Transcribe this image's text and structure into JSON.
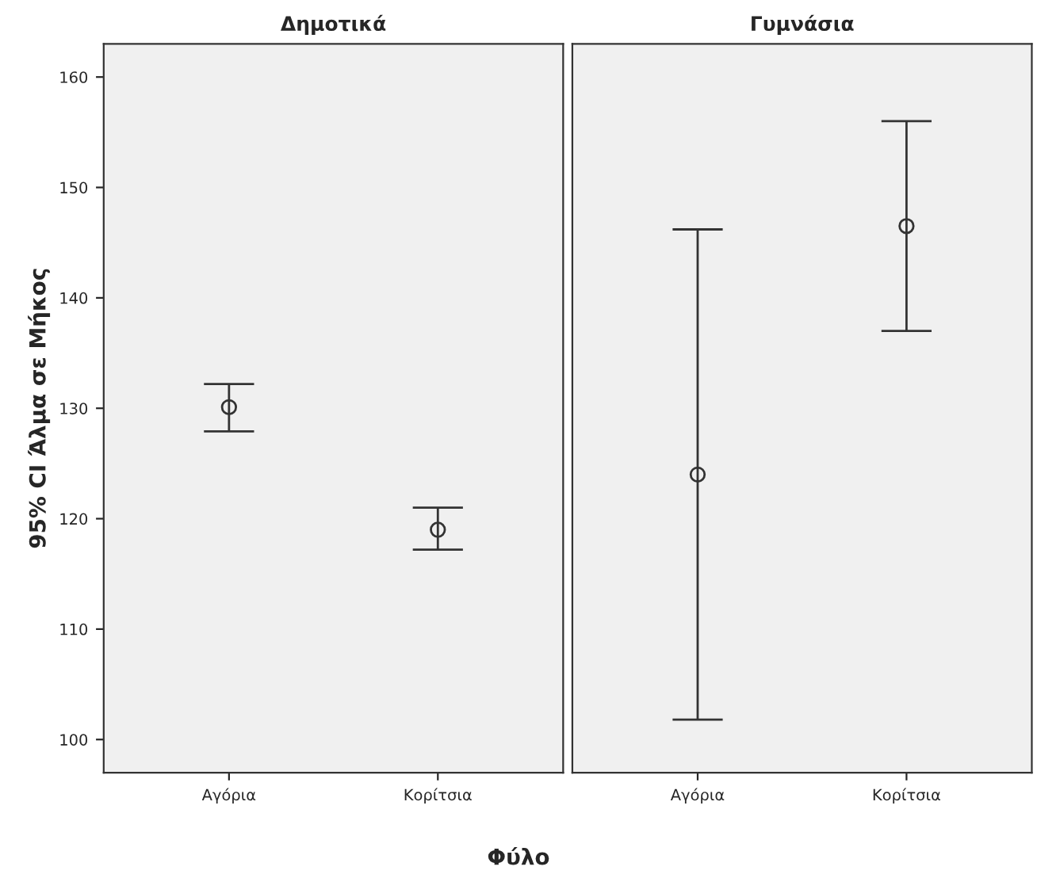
{
  "chart_data": [
    {
      "type": "scatter",
      "title": "Δημοτικά",
      "ylabel": "95% CI Άλμα σε Μήκος",
      "xlabel": "Φύλο",
      "categories": [
        "Αγόρια",
        "Κορίτσια"
      ],
      "values": [
        130.1,
        119.0
      ],
      "errors": [
        [
          127.9,
          132.2
        ],
        [
          117.2,
          121.0
        ]
      ],
      "color": "#333333",
      "marker": "circle",
      "ylim": [
        97,
        163
      ],
      "yticks": [
        100,
        110,
        120,
        130,
        140,
        150,
        160
      ],
      "grid": false
    },
    {
      "type": "scatter",
      "title": "Γυμνάσια",
      "categories": [
        "Αγόρια",
        "Κορίτσια"
      ],
      "values": [
        124.0,
        146.5
      ],
      "errors": [
        [
          101.8,
          146.2
        ],
        [
          137.0,
          156.0
        ]
      ],
      "color": "#333333",
      "marker": "circle",
      "ylim": [
        97,
        163
      ],
      "yticks": [
        100,
        110,
        120,
        130,
        140,
        150,
        160
      ],
      "grid": false,
      "tick_labels": "x"
    }
  ]
}
